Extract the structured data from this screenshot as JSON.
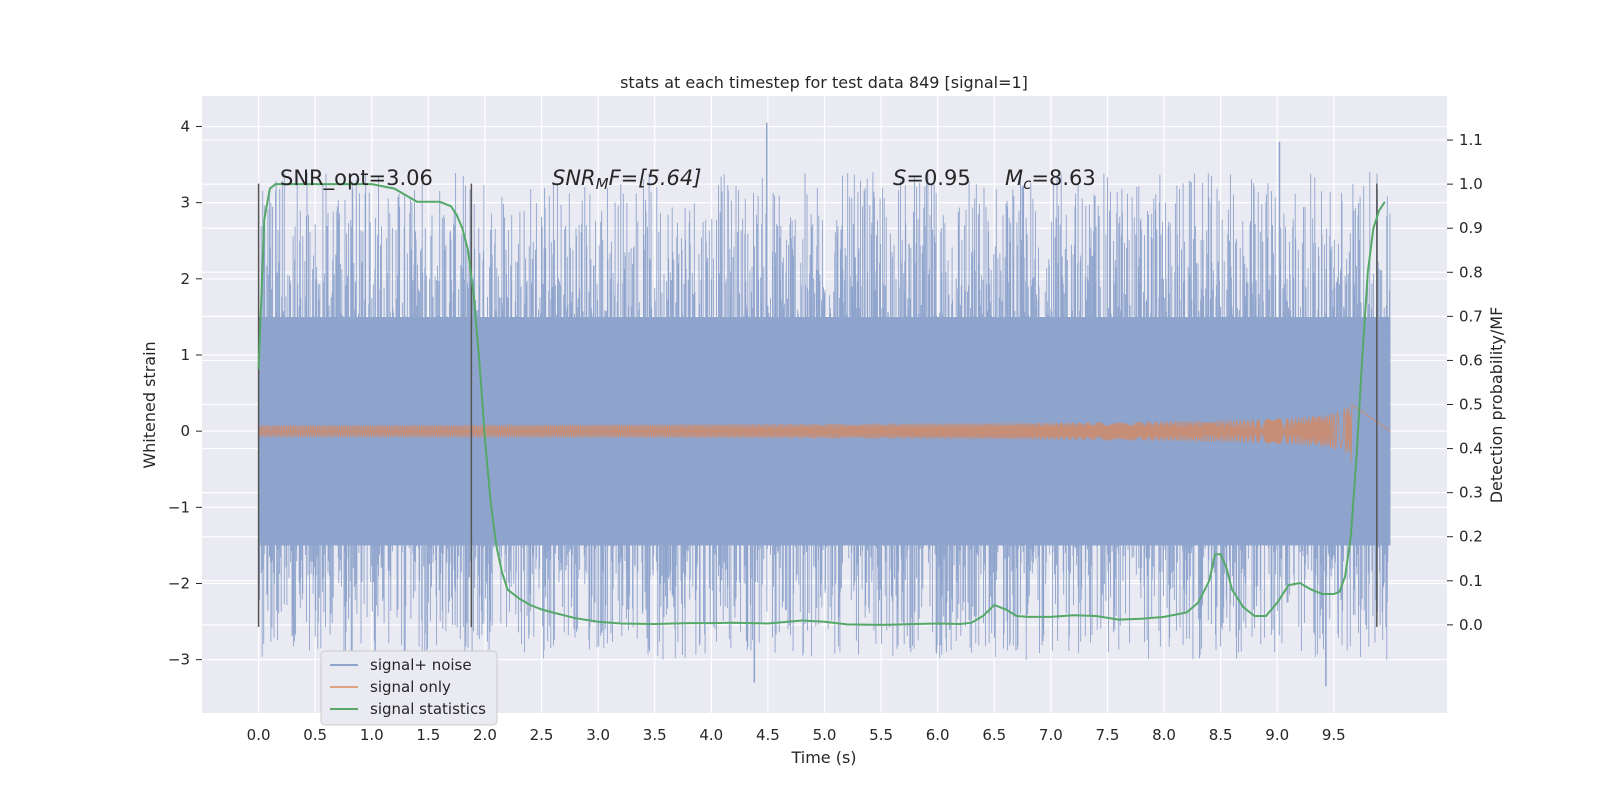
{
  "chart_data": {
    "type": "line",
    "title": "stats at each timestep for test data 849 [signal=1]",
    "xlabel": "Time (s)",
    "ylabel": "Whitened strain",
    "ylabel_right": "Detection probability/MF",
    "xlim": [
      -0.5,
      10.5
    ],
    "ylim": [
      -3.7,
      4.4
    ],
    "ylim_right": [
      -0.2,
      1.2
    ],
    "xticks": [
      "0.0",
      "0.5",
      "1.0",
      "1.5",
      "2.0",
      "2.5",
      "3.0",
      "3.5",
      "4.0",
      "4.5",
      "5.0",
      "5.5",
      "6.0",
      "6.5",
      "7.0",
      "7.5",
      "8.0",
      "8.5",
      "9.0",
      "9.5"
    ],
    "yticks": [
      "−3",
      "−2",
      "−1",
      "0",
      "1",
      "2",
      "3",
      "4"
    ],
    "yticks_right": [
      "0.0",
      "0.1",
      "0.2",
      "0.3",
      "0.4",
      "0.5",
      "0.6",
      "0.7",
      "0.8",
      "0.9",
      "1.0",
      "1.1"
    ],
    "grid": true,
    "legend_position": "lower-left",
    "annotations": {
      "snr_opt": "SNR_opt=3.06",
      "snr_mf_name": "SNR",
      "snr_mf_sub": "M",
      "snr_mf_rest": "F=[5.64]",
      "s_name": "S",
      "s_value": "=0.95",
      "mc_name": "M",
      "mc_sub": "c",
      "mc_value": "=8.63"
    },
    "window_markers_x": [
      0.0,
      1.88,
      9.88
    ],
    "marker_y_range": [
      -2.57,
      3.25
    ],
    "series": [
      {
        "name": "signal+ noise",
        "color": "#8fa4cc",
        "x_range": [
          0.0,
          10.0
        ],
        "envelope": [
          -1.5,
          1.5
        ],
        "peak_max": 4.05,
        "peak_min": -3.35
      },
      {
        "name": "signal only",
        "color": "#dd8452",
        "x_range": [
          0.0,
          10.0
        ],
        "peak_amplitude": 0.45,
        "merger_x": 9.66
      },
      {
        "name": "signal statistics",
        "color": "#55a868",
        "axis": "right",
        "x": [
          0.0,
          0.05,
          0.1,
          0.15,
          0.2,
          0.3,
          0.5,
          0.8,
          1.0,
          1.2,
          1.4,
          1.5,
          1.6,
          1.7,
          1.75,
          1.8,
          1.85,
          1.9,
          1.95,
          2.0,
          2.05,
          2.1,
          2.15,
          2.2,
          2.3,
          2.4,
          2.5,
          2.6,
          2.8,
          3.0,
          3.2,
          3.5,
          3.8,
          4.0,
          4.2,
          4.5,
          4.8,
          5.0,
          5.2,
          5.5,
          5.8,
          6.0,
          6.2,
          6.3,
          6.4,
          6.5,
          6.6,
          6.7,
          6.8,
          7.0,
          7.2,
          7.4,
          7.6,
          7.8,
          8.0,
          8.2,
          8.3,
          8.4,
          8.45,
          8.5,
          8.55,
          8.6,
          8.7,
          8.8,
          8.9,
          9.0,
          9.1,
          9.2,
          9.3,
          9.4,
          9.5,
          9.55,
          9.6,
          9.65,
          9.7,
          9.75,
          9.8,
          9.85,
          9.9,
          9.95
        ],
        "values": [
          0.58,
          0.92,
          0.99,
          1.0,
          1.0,
          1.0,
          1.0,
          1.0,
          1.0,
          0.99,
          0.96,
          0.96,
          0.96,
          0.95,
          0.93,
          0.9,
          0.85,
          0.75,
          0.6,
          0.42,
          0.28,
          0.18,
          0.12,
          0.08,
          0.06,
          0.045,
          0.035,
          0.028,
          0.015,
          0.007,
          0.003,
          0.002,
          0.004,
          0.004,
          0.005,
          0.003,
          0.01,
          0.007,
          0.001,
          0.0,
          0.002,
          0.003,
          0.002,
          0.005,
          0.02,
          0.045,
          0.035,
          0.02,
          0.018,
          0.018,
          0.022,
          0.02,
          0.012,
          0.014,
          0.018,
          0.028,
          0.05,
          0.1,
          0.16,
          0.16,
          0.13,
          0.08,
          0.04,
          0.02,
          0.02,
          0.05,
          0.09,
          0.095,
          0.08,
          0.07,
          0.07,
          0.075,
          0.11,
          0.2,
          0.38,
          0.6,
          0.8,
          0.9,
          0.94,
          0.96
        ]
      }
    ]
  }
}
